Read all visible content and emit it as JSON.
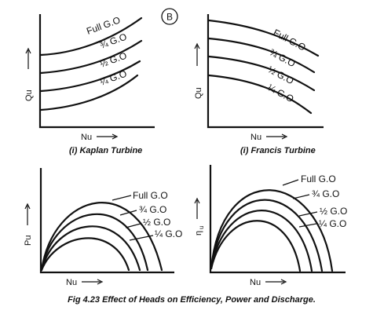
{
  "badge": "B",
  "panels": {
    "kaplan": {
      "ylabel": "Qu",
      "xlabel": "Nu",
      "caption": "(i) Kaplan Turbine",
      "curves": [
        "Full G.O",
        "¾ G.O",
        "½ G.O",
        "¼ G.O"
      ]
    },
    "francis": {
      "ylabel": "Qu",
      "xlabel": "Nu",
      "caption": "(i) Francis Turbine",
      "curves": [
        "Full G.O",
        "¾ G.O",
        "½ G.O",
        "¼ G.O"
      ]
    },
    "power": {
      "ylabel": "Pu",
      "xlabel": "Nu",
      "curves": [
        "Full G.O",
        "¾ G.O",
        "½ G.O",
        "¼ G.O"
      ]
    },
    "efficiency": {
      "ylabel": "η",
      "ylabel_sub": "u",
      "xlabel": "Nu",
      "curves": [
        "Full G.O",
        "¾ G.O",
        "½ G.O",
        "¼ G.O"
      ]
    }
  },
  "figure_caption": "Fig 4.23 Effect of Heads on Efficiency, Power and Discharge."
}
